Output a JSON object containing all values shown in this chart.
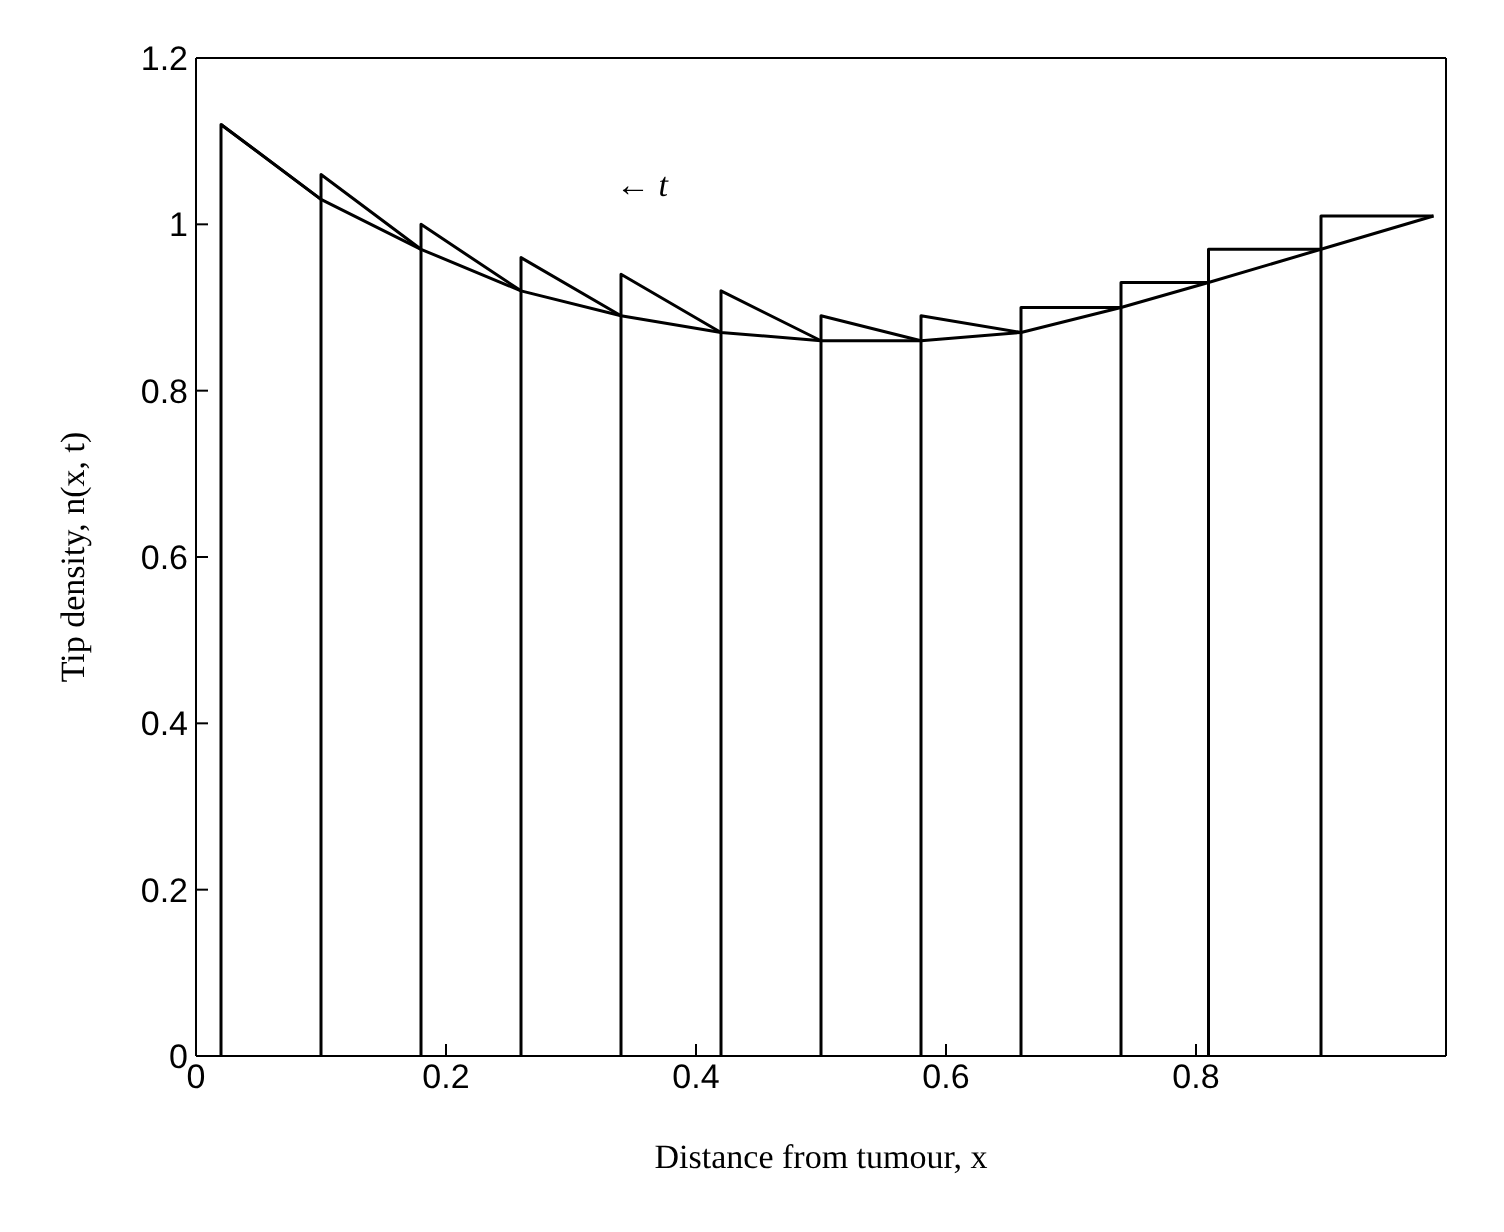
{
  "chart_data": {
    "type": "line",
    "xlabel": "Distance from tumour, x",
    "ylabel": "Tip density, n(x, t)",
    "annotations": [
      "← t"
    ],
    "xlim": [
      0,
      1
    ],
    "xticks": [
      0,
      0.2,
      0.4,
      0.6,
      0.8,
      {
        "value": 1,
        "label": null
      }
    ],
    "ylim": [
      0,
      1.2
    ],
    "yticks": [
      0,
      0.2,
      0.4,
      0.6,
      0.8,
      1,
      1.2
    ],
    "marker": "none",
    "line_style": "solid",
    "series": [
      {
        "color": "#000000",
        "x": [
          0.02,
          0.1,
          0.18,
          0.26,
          0.34,
          0.42,
          0.5,
          0.58,
          0.66,
          0.74,
          0.81,
          0.9,
          0.99
        ],
        "values": [
          1.12,
          1.03,
          0.97,
          0.92,
          0.89,
          0.87,
          0.86,
          0.86,
          0.87,
          0.9,
          0.93,
          0.97,
          1.01
        ]
      },
      {
        "color": "#000000",
        "x": [
          0.02,
          0.02,
          0.1
        ],
        "values": [
          0,
          1.12,
          1.03
        ]
      },
      {
        "color": "#000000",
        "x": [
          0.1,
          0.1,
          0.18
        ],
        "values": [
          0,
          1.06,
          0.97
        ]
      },
      {
        "color": "#000000",
        "x": [
          0.18,
          0.18,
          0.26
        ],
        "values": [
          0,
          1.0,
          0.92
        ]
      },
      {
        "color": "#000000",
        "x": [
          0.26,
          0.26,
          0.34
        ],
        "values": [
          0,
          0.96,
          0.89
        ]
      },
      {
        "color": "#000000",
        "x": [
          0.34,
          0.34,
          0.42
        ],
        "values": [
          0,
          0.94,
          0.87
        ]
      },
      {
        "color": "#000000",
        "x": [
          0.42,
          0.42,
          0.5
        ],
        "values": [
          0,
          0.92,
          0.86
        ]
      },
      {
        "color": "#000000",
        "x": [
          0.5,
          0.5,
          0.58
        ],
        "values": [
          0,
          0.89,
          0.86
        ]
      },
      {
        "color": "#000000",
        "x": [
          0.58,
          0.58,
          0.66
        ],
        "values": [
          0,
          0.89,
          0.87
        ]
      },
      {
        "color": "#000000",
        "x": [
          0.66,
          0.66,
          0.74
        ],
        "values": [
          0,
          0.9,
          0.9
        ]
      },
      {
        "color": "#000000",
        "x": [
          0.74,
          0.74,
          0.81
        ],
        "values": [
          0,
          0.93,
          0.93
        ]
      },
      {
        "color": "#000000",
        "x": [
          0.81,
          0.81,
          0.9
        ],
        "values": [
          0,
          0.97,
          0.97
        ]
      },
      {
        "color": "#000000",
        "x": [
          0.9,
          0.9,
          0.99
        ],
        "values": [
          0,
          1.01,
          1.01
        ]
      }
    ]
  }
}
